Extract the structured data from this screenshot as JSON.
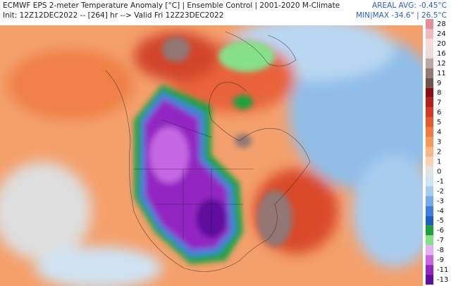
{
  "header": {
    "title": "ECMWF EPS 2-meter Temperature Anomaly [°C] | Ensemble Control | 2001-2020 M-Climate",
    "subtitle": "Init: 12Z12DEC2022 -- [264] hr --> Valid Fri 12Z23DEC2022",
    "areal_avg": "AREAL AVG: -0.45°C",
    "min_max": "MIN|MAX -34.6° | 26.5°C"
  },
  "colorbar": {
    "levels": [
      28,
      24,
      20,
      16,
      12,
      11,
      9,
      8,
      7,
      6,
      5,
      4,
      3,
      2,
      1,
      0,
      -1,
      -2,
      -3,
      -4,
      -5,
      -6,
      -7,
      -8,
      -9,
      -11,
      -13
    ],
    "colors": [
      "#e38e9a",
      "#efb9bd",
      "#f6d9d9",
      "#eadcdc",
      "#b9a8a6",
      "#927775",
      "#6f5250",
      "#8a0f12",
      "#b3211b",
      "#d23a22",
      "#e45a2c",
      "#f07a40",
      "#f6995e",
      "#f8b686",
      "#f9d3b4",
      "#e3e3e3",
      "#cfe3f3",
      "#a6cdef",
      "#75abe6",
      "#3f82de",
      "#1f5fc2",
      "#1fa03c",
      "#86e08a",
      "#e6aef2",
      "#c666e2",
      "#9326c3",
      "#5e0f9e"
    ]
  }
}
